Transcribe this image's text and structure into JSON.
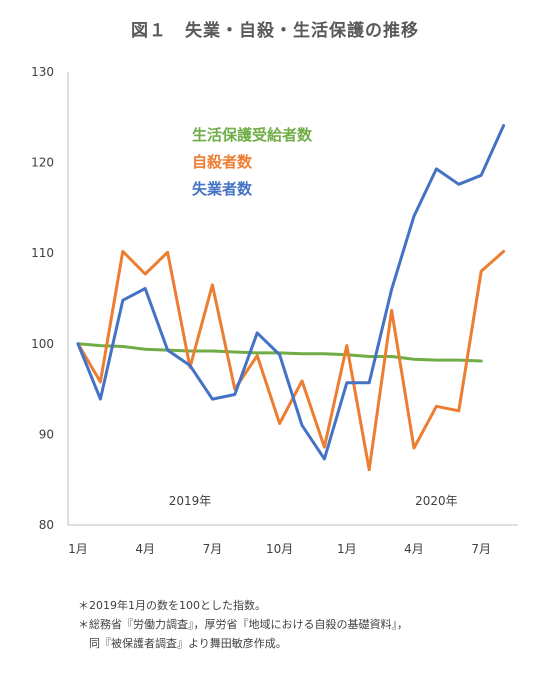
{
  "chart_data": {
    "type": "line",
    "title": "図１　失業・自殺・生活保護の推移",
    "ylim": [
      80,
      130
    ],
    "yticks": [
      80,
      90,
      100,
      110,
      120,
      130
    ],
    "x_tick_labels": [
      "1月",
      "4月",
      "7月",
      "10月",
      "1月",
      "4月",
      "7月"
    ],
    "x_tick_index": [
      0,
      3,
      6,
      9,
      12,
      15,
      18
    ],
    "year_labels": [
      {
        "text": "2019年",
        "index": 5
      },
      {
        "text": "2020年",
        "index": 16
      }
    ],
    "series": [
      {
        "name": "生活保護受給者数",
        "color": "#70ad47",
        "values": [
          100,
          99.8,
          99.7,
          99.4,
          99.3,
          99.2,
          99.2,
          99.1,
          99.0,
          99.0,
          98.9,
          98.9,
          98.8,
          98.6,
          98.6,
          98.3,
          98.2,
          98.2,
          98.1
        ]
      },
      {
        "name": "自殺者数",
        "color": "#ed7d31",
        "values": [
          100,
          95.8,
          110.2,
          107.7,
          110.1,
          97.4,
          106.5,
          95.0,
          98.7,
          91.2,
          95.9,
          88.6,
          99.8,
          86.1,
          103.7,
          88.5,
          93.1,
          92.6,
          108.0,
          110.2
        ]
      },
      {
        "name": "失業者数",
        "color": "#4472c4",
        "values": [
          100,
          93.9,
          104.8,
          106.1,
          99.3,
          97.6,
          93.9,
          94.4,
          101.2,
          98.8,
          91.0,
          87.3,
          95.7,
          95.7,
          106.0,
          114.1,
          119.3,
          117.6,
          118.6,
          124.1
        ]
      }
    ],
    "legend_order": [
      0,
      1,
      2
    ]
  },
  "notes": [
    "＊2019年1月の数を100とした指数。",
    "＊総務省『労働力調査』，厚労省『地域における自殺の基礎資料』，",
    "　同『被保護者調査』より舞田敏彦作成。"
  ]
}
